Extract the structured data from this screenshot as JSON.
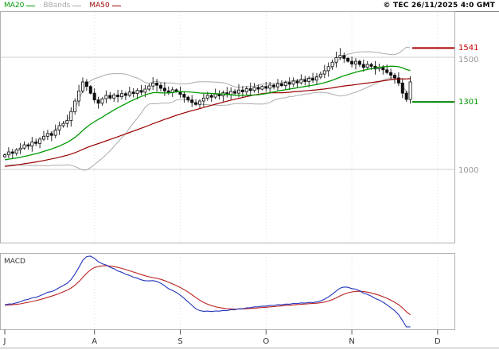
{
  "header": {
    "timestamp": "© TEC 26/11/2025 4:0 GMT"
  },
  "legend": {
    "ma20": "MA20",
    "bbands": "BBands",
    "ma50": "MA50"
  },
  "price_axis": {
    "resistance_label": "1541",
    "support_label": "1301",
    "tick_1500": "1500",
    "tick_1000": "1000"
  },
  "macd_panel": {
    "label": "MACD"
  },
  "x_axis": {
    "labels": [
      "J",
      "A",
      "S",
      "O",
      "N",
      "D"
    ]
  },
  "colors": {
    "ma20": "#009900",
    "ma50": "#990000",
    "bbands": "#ababab",
    "candle": "#111111",
    "grid": "#cccccc",
    "resistance_line": "#aa0000",
    "support_line": "#008800",
    "resistance_text": "#cc0000",
    "support_text": "#009900",
    "tick_text": "#999999",
    "macd_line": "#2233bb",
    "macd_signal": "#bb2222"
  },
  "chart_data": {
    "type": "candlestick",
    "title": "Daily price chart with MA20/MA50, Bollinger Bands and MACD",
    "x_axis_month_labels": [
      "J",
      "A",
      "S",
      "O",
      "N",
      "D"
    ],
    "y_ticks": [
      1500,
      1000
    ],
    "ylim_visible_approx": [
      675,
      1705
    ],
    "levels": {
      "resistance": 1541,
      "support": 1301
    },
    "overlays": [
      "MA20",
      "MA50",
      "Bollinger Bands (20,2)"
    ],
    "indicator_panel": {
      "name": "MACD",
      "lines": [
        "MACD",
        "signal"
      ],
      "derived_from_close": true
    },
    "month_start_indices": [
      0,
      23,
      45,
      67,
      89,
      111
    ],
    "close": [
      1065,
      1078,
      1072,
      1088,
      1095,
      1110,
      1104,
      1122,
      1116,
      1135,
      1148,
      1160,
      1152,
      1175,
      1195,
      1205,
      1218,
      1258,
      1305,
      1350,
      1390,
      1370,
      1340,
      1310,
      1295,
      1315,
      1330,
      1318,
      1332,
      1324,
      1338,
      1330,
      1345,
      1338,
      1352,
      1344,
      1358,
      1372,
      1385,
      1375,
      1362,
      1350,
      1342,
      1355,
      1348,
      1335,
      1322,
      1310,
      1298,
      1290,
      1305,
      1318,
      1330,
      1322,
      1336,
      1328,
      1342,
      1334,
      1348,
      1340,
      1354,
      1346,
      1360,
      1352,
      1366,
      1358,
      1370,
      1362,
      1376,
      1368,
      1382,
      1374,
      1388,
      1380,
      1394,
      1386,
      1400,
      1392,
      1406,
      1398,
      1412,
      1425,
      1440,
      1458,
      1478,
      1498,
      1508,
      1495,
      1482,
      1470,
      1482,
      1468,
      1455,
      1468,
      1460,
      1448,
      1456,
      1444,
      1432,
      1420,
      1408,
      1385,
      1340,
      1312,
      1390
    ]
  }
}
